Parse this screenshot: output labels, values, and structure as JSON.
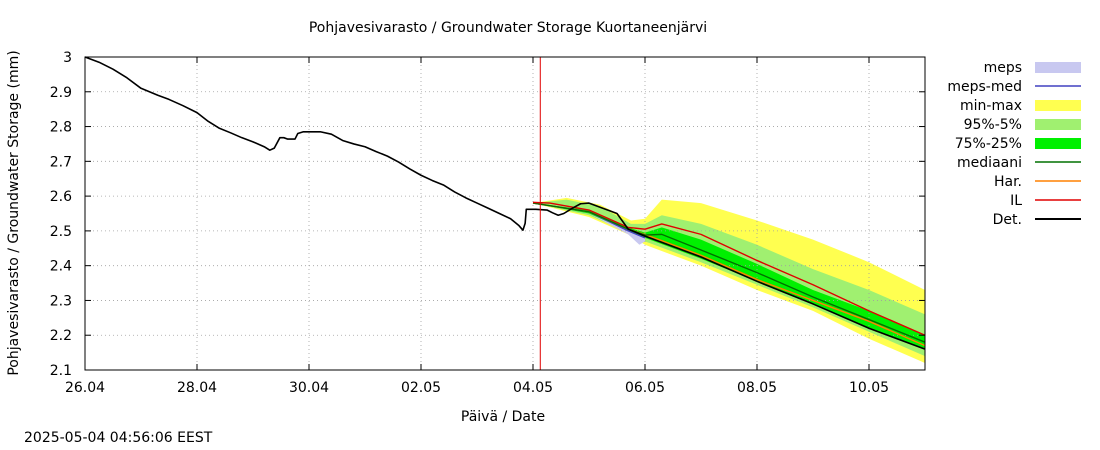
{
  "chart_data": {
    "type": "line",
    "title": "Pohjavesivarasto / Groundwater Storage   Kuortaneenjärvi",
    "xlabel": "Päivä / Date",
    "ylabel": "Pohjavesivarasto / Groundwater Storage (mm)",
    "x_range": [
      "2025-04-26",
      "2025-05-11"
    ],
    "xlim": [
      0,
      15
    ],
    "ylim": [
      2.1,
      3.0
    ],
    "grid": true,
    "legend_position": "right",
    "x_ticks": [
      {
        "x": 0,
        "label": "26.04"
      },
      {
        "x": 2,
        "label": "28.04"
      },
      {
        "x": 4,
        "label": "30.04"
      },
      {
        "x": 6,
        "label": "02.05"
      },
      {
        "x": 8,
        "label": "04.05"
      },
      {
        "x": 10,
        "label": "06.05"
      },
      {
        "x": 12,
        "label": "08.05"
      },
      {
        "x": 14,
        "label": "10.05"
      }
    ],
    "y_ticks": [
      {
        "y": 3.0,
        "label": "3"
      },
      {
        "y": 2.9,
        "label": "2.9"
      },
      {
        "y": 2.8,
        "label": "2.8"
      },
      {
        "y": 2.7,
        "label": "2.7"
      },
      {
        "y": 2.6,
        "label": "2.6"
      },
      {
        "y": 2.5,
        "label": "2.5"
      },
      {
        "y": 2.4,
        "label": "2.4"
      },
      {
        "y": 2.3,
        "label": "2.3"
      },
      {
        "y": 2.2,
        "label": "2.2"
      },
      {
        "y": 2.1,
        "label": "2.1"
      }
    ],
    "forecast_start_x": 8.13,
    "series": [
      {
        "name": "meps",
        "kind": "band",
        "color": "#c8c8f0",
        "upper": [
          [
            8.0,
            2.58
          ],
          [
            9.0,
            2.56
          ],
          [
            9.7,
            2.51
          ],
          [
            9.95,
            2.49
          ],
          [
            10.0,
            2.48
          ]
        ],
        "lower": [
          [
            8.0,
            2.58
          ],
          [
            9.0,
            2.55
          ],
          [
            9.7,
            2.49
          ],
          [
            9.9,
            2.46
          ],
          [
            10.0,
            2.47
          ]
        ]
      },
      {
        "name": "meps-med",
        "kind": "line",
        "color": "#4040c0",
        "points": [
          [
            8.0,
            2.58
          ],
          [
            9.0,
            2.555
          ],
          [
            9.7,
            2.5
          ],
          [
            10.0,
            2.48
          ]
        ]
      },
      {
        "name": "min-max",
        "kind": "band",
        "color": "#ffff50",
        "upper": [
          [
            8.0,
            2.58
          ],
          [
            8.6,
            2.595
          ],
          [
            9.2,
            2.575
          ],
          [
            9.75,
            2.53
          ],
          [
            10.0,
            2.535
          ],
          [
            10.3,
            2.59
          ],
          [
            11.0,
            2.58
          ],
          [
            12.0,
            2.53
          ],
          [
            13.0,
            2.475
          ],
          [
            14.0,
            2.41
          ],
          [
            15.0,
            2.33
          ]
        ],
        "lower": [
          [
            8.0,
            2.58
          ],
          [
            9.0,
            2.54
          ],
          [
            9.7,
            2.49
          ],
          [
            10.0,
            2.46
          ],
          [
            11.0,
            2.4
          ],
          [
            12.0,
            2.33
          ],
          [
            13.0,
            2.27
          ],
          [
            14.0,
            2.19
          ],
          [
            15.0,
            2.12
          ]
        ]
      },
      {
        "name": "95%-5%",
        "kind": "band",
        "color": "#a0f070",
        "upper": [
          [
            8.0,
            2.58
          ],
          [
            8.6,
            2.59
          ],
          [
            9.2,
            2.57
          ],
          [
            9.75,
            2.52
          ],
          [
            10.0,
            2.52
          ],
          [
            10.3,
            2.545
          ],
          [
            11.0,
            2.52
          ],
          [
            12.0,
            2.46
          ],
          [
            13.0,
            2.39
          ],
          [
            14.0,
            2.33
          ],
          [
            15.0,
            2.26
          ]
        ],
        "lower": [
          [
            8.0,
            2.58
          ],
          [
            9.0,
            2.545
          ],
          [
            9.7,
            2.495
          ],
          [
            10.0,
            2.47
          ],
          [
            11.0,
            2.41
          ],
          [
            12.0,
            2.345
          ],
          [
            13.0,
            2.28
          ],
          [
            14.0,
            2.21
          ],
          [
            15.0,
            2.14
          ]
        ]
      },
      {
        "name": "75%-25%",
        "kind": "band",
        "color": "#00f000",
        "upper": [
          [
            8.0,
            2.58
          ],
          [
            9.0,
            2.56
          ],
          [
            9.7,
            2.51
          ],
          [
            10.0,
            2.495
          ],
          [
            10.3,
            2.51
          ],
          [
            11.0,
            2.475
          ],
          [
            12.0,
            2.405
          ],
          [
            13.0,
            2.33
          ],
          [
            14.0,
            2.27
          ],
          [
            15.0,
            2.2
          ]
        ],
        "lower": [
          [
            8.0,
            2.58
          ],
          [
            9.0,
            2.55
          ],
          [
            9.7,
            2.5
          ],
          [
            10.0,
            2.48
          ],
          [
            11.0,
            2.42
          ],
          [
            12.0,
            2.355
          ],
          [
            13.0,
            2.29
          ],
          [
            14.0,
            2.22
          ],
          [
            15.0,
            2.16
          ]
        ]
      },
      {
        "name": "mediaani",
        "kind": "line",
        "color": "#007000",
        "points": [
          [
            8.0,
            2.58
          ],
          [
            9.0,
            2.555
          ],
          [
            9.7,
            2.505
          ],
          [
            10.0,
            2.488
          ],
          [
            10.3,
            2.49
          ],
          [
            11.0,
            2.445
          ],
          [
            12.0,
            2.38
          ],
          [
            13.0,
            2.31
          ],
          [
            14.0,
            2.245
          ],
          [
            15.0,
            2.18
          ]
        ]
      },
      {
        "name": "Har.",
        "kind": "line",
        "color": "#ff8000",
        "points": [
          [
            8.0,
            2.58
          ],
          [
            9.0,
            2.555
          ],
          [
            9.7,
            2.505
          ],
          [
            10.0,
            2.49
          ],
          [
            11.0,
            2.43
          ],
          [
            12.0,
            2.36
          ],
          [
            13.0,
            2.3
          ],
          [
            14.0,
            2.24
          ],
          [
            15.0,
            2.17
          ]
        ]
      },
      {
        "name": "IL",
        "kind": "line",
        "color": "#e00000",
        "points": [
          [
            8.0,
            2.582
          ],
          [
            8.3,
            2.58
          ],
          [
            9.0,
            2.56
          ],
          [
            9.7,
            2.51
          ],
          [
            10.0,
            2.505
          ],
          [
            10.3,
            2.52
          ],
          [
            11.0,
            2.49
          ],
          [
            12.0,
            2.415
          ],
          [
            13.0,
            2.345
          ],
          [
            14.0,
            2.27
          ],
          [
            15.0,
            2.2
          ]
        ]
      },
      {
        "name": "Det.",
        "kind": "line",
        "color": "#000000",
        "points": [
          [
            0.0,
            3.0
          ],
          [
            0.25,
            2.985
          ],
          [
            0.5,
            2.965
          ],
          [
            0.75,
            2.94
          ],
          [
            1.0,
            2.91
          ],
          [
            1.3,
            2.89
          ],
          [
            1.5,
            2.878
          ],
          [
            1.75,
            2.86
          ],
          [
            2.0,
            2.84
          ],
          [
            2.2,
            2.815
          ],
          [
            2.4,
            2.795
          ],
          [
            2.6,
            2.782
          ],
          [
            2.8,
            2.768
          ],
          [
            3.0,
            2.756
          ],
          [
            3.2,
            2.742
          ],
          [
            3.3,
            2.732
          ],
          [
            3.38,
            2.738
          ],
          [
            3.48,
            2.768
          ],
          [
            3.55,
            2.768
          ],
          [
            3.62,
            2.764
          ],
          [
            3.75,
            2.764
          ],
          [
            3.8,
            2.78
          ],
          [
            3.9,
            2.785
          ],
          [
            4.2,
            2.785
          ],
          [
            4.4,
            2.778
          ],
          [
            4.6,
            2.76
          ],
          [
            4.8,
            2.75
          ],
          [
            5.0,
            2.742
          ],
          [
            5.2,
            2.728
          ],
          [
            5.4,
            2.715
          ],
          [
            5.6,
            2.698
          ],
          [
            5.8,
            2.678
          ],
          [
            6.0,
            2.66
          ],
          [
            6.2,
            2.645
          ],
          [
            6.4,
            2.632
          ],
          [
            6.6,
            2.612
          ],
          [
            6.8,
            2.595
          ],
          [
            7.0,
            2.58
          ],
          [
            7.2,
            2.565
          ],
          [
            7.4,
            2.55
          ],
          [
            7.6,
            2.535
          ],
          [
            7.75,
            2.515
          ],
          [
            7.82,
            2.502
          ],
          [
            7.86,
            2.522
          ],
          [
            7.88,
            2.562
          ],
          [
            8.05,
            2.562
          ],
          [
            8.25,
            2.56
          ],
          [
            8.35,
            2.552
          ],
          [
            8.45,
            2.545
          ],
          [
            8.55,
            2.55
          ],
          [
            8.7,
            2.565
          ],
          [
            8.85,
            2.578
          ],
          [
            9.0,
            2.58
          ],
          [
            9.5,
            2.55
          ],
          [
            9.7,
            2.505
          ],
          [
            10.0,
            2.485
          ],
          [
            11.0,
            2.425
          ],
          [
            12.0,
            2.355
          ],
          [
            13.0,
            2.29
          ],
          [
            14.0,
            2.22
          ],
          [
            15.0,
            2.16
          ]
        ]
      }
    ]
  },
  "timestamp": "2025-05-04  04:56:06 EEST"
}
